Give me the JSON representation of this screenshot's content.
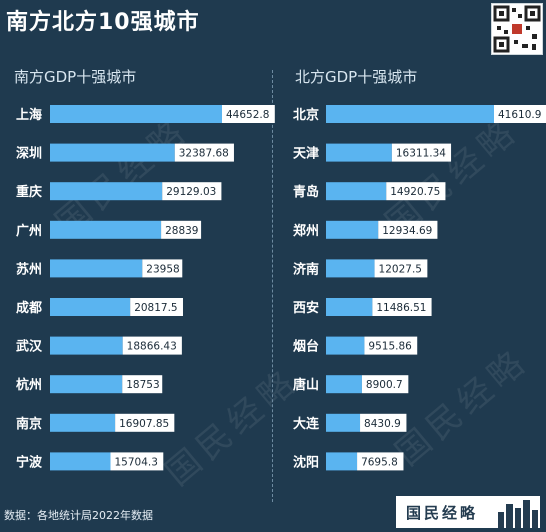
{
  "title": "南方北方10强城市",
  "source_note": "数据：各地统计局2022年数据",
  "brand": "国民经略",
  "watermark": "国民经略",
  "colors": {
    "bar": "#5ab4f0",
    "background": "#1f3a4f",
    "label_box": "#ffffff",
    "text": "#ffffff"
  },
  "chart_data": [
    {
      "type": "bar",
      "orientation": "horizontal",
      "title": "南方GDP十强城市",
      "categories": [
        "上海",
        "深圳",
        "重庆",
        "广州",
        "苏州",
        "成都",
        "武汉",
        "杭州",
        "南京",
        "宁波"
      ],
      "values": [
        44652.8,
        32387.68,
        29129.03,
        28839,
        23958,
        20817.5,
        18866.43,
        18753,
        16907.85,
        15704.3
      ],
      "labels": [
        "44652.8",
        "32387.68",
        "29129.03",
        "28839",
        "23958",
        "20817.5",
        "18866.43",
        "18753",
        "16907.85",
        "15704.3"
      ]
    },
    {
      "type": "bar",
      "orientation": "horizontal",
      "title": "北方GDP十强城市",
      "categories": [
        "北京",
        "天津",
        "青岛",
        "郑州",
        "济南",
        "西安",
        "烟台",
        "唐山",
        "大连",
        "沈阳"
      ],
      "values": [
        41610.9,
        16311.34,
        14920.75,
        12934.69,
        12027.5,
        11486.51,
        9515.86,
        8900.7,
        8430.9,
        7695.8
      ],
      "labels": [
        "41610.9",
        "16311.34",
        "14920.75",
        "12934.69",
        "12027.5",
        "11486.51",
        "9515.86",
        "8900.7",
        "8430.9",
        "7695.8"
      ]
    }
  ]
}
